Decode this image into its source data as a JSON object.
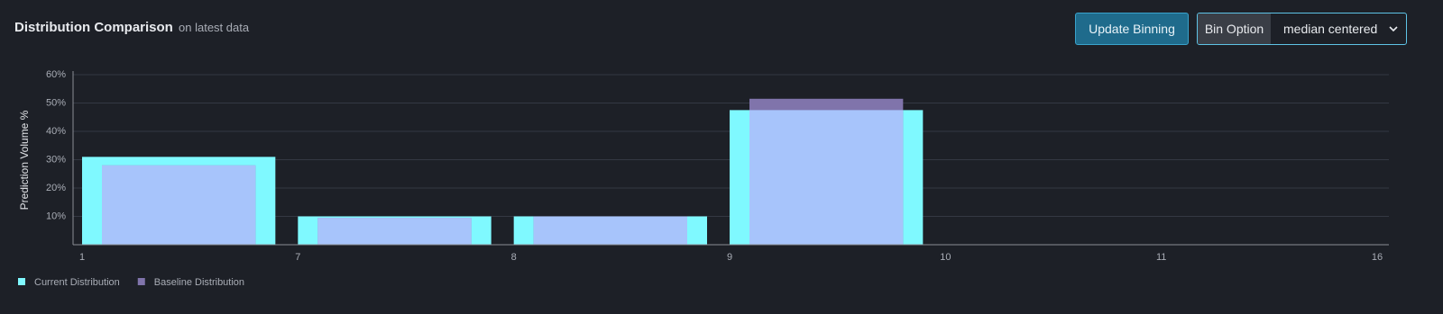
{
  "header": {
    "title": "Distribution Comparison",
    "subtitle": "on latest data"
  },
  "controls": {
    "button": "Update Binning",
    "select_label": "Bin Option",
    "select_value": "median centered"
  },
  "chart_data": {
    "type": "histogram",
    "y_label": "Prediction Volume %",
    "bins": [
      1,
      7,
      8,
      9,
      10,
      11,
      16
    ],
    "series": [
      {
        "name": "Current Distribution",
        "color": "#7ff9ff",
        "values": [
          31,
          10,
          10,
          47.5,
          0,
          0
        ]
      },
      {
        "name": "Baseline Distribution",
        "color": "#8074ab",
        "values": [
          28,
          9.5,
          10,
          51.5,
          0,
          0
        ]
      }
    ],
    "overlap_color": "#a7c4fb",
    "ylim": [
      0,
      60
    ],
    "yticks": [
      {
        "value": 10,
        "label": "10%"
      },
      {
        "value": 20,
        "label": "20%"
      },
      {
        "value": 30,
        "label": "30%"
      },
      {
        "value": 40,
        "label": "40%"
      },
      {
        "value": 50,
        "label": "50%"
      },
      {
        "value": 60,
        "label": "60%"
      }
    ],
    "grid": true
  }
}
